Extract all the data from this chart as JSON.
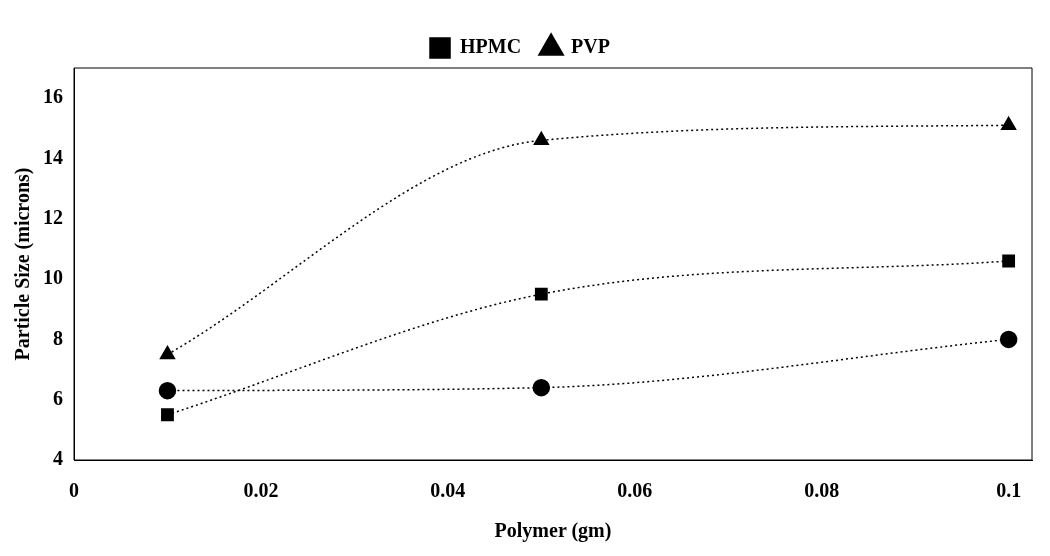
{
  "chart_data": {
    "type": "line",
    "xlabel": "Polymer (gm)",
    "ylabel": "Particle Size (microns)",
    "x": [
      0.01,
      0.05,
      0.1
    ],
    "series": [
      {
        "name": "HPMC",
        "color": "#000000",
        "marker": "square",
        "values": [
          5.5,
          9.5,
          10.6
        ]
      },
      {
        "name": "PVP",
        "color": "#000000",
        "marker": "triangle",
        "values": [
          7.5,
          14.6,
          15.1
        ]
      },
      {
        "color": "#000000",
        "marker": "circle",
        "values": [
          6.3,
          6.4,
          8.0
        ]
      }
    ],
    "xlim": [
      0,
      0.1025
    ],
    "xticks": [
      0,
      0.02,
      0.04,
      0.06,
      0.08,
      0.1
    ],
    "ylim": [
      4,
      17
    ],
    "yticks": [
      4,
      6,
      8,
      10,
      12,
      14,
      16
    ],
    "grid": false,
    "legend": "top",
    "line_style": "dotted"
  }
}
